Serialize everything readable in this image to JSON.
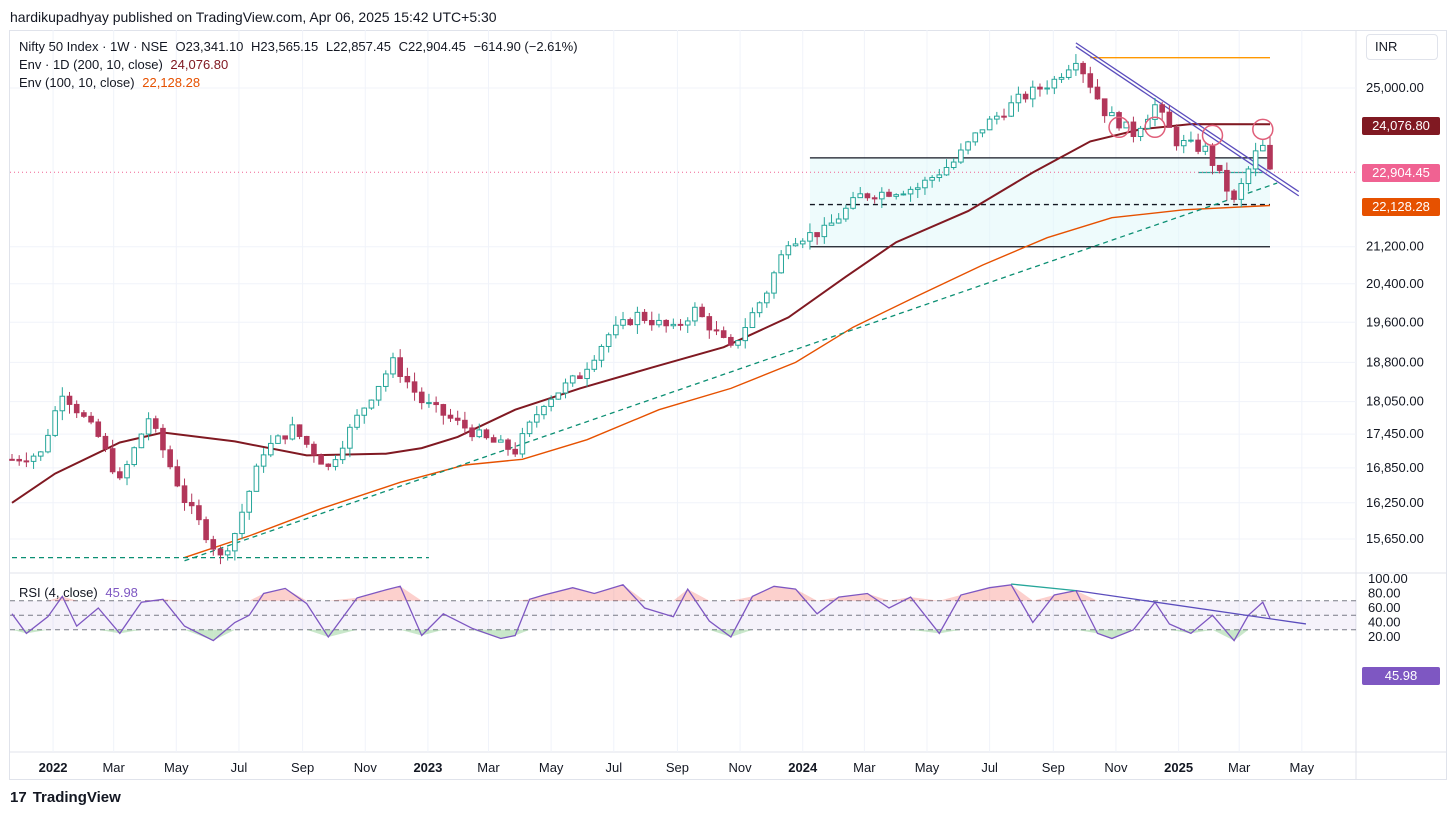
{
  "header": {
    "publisher_line": "hardikupadhyay published on TradingView.com, Apr 06, 2025 15:42 UTC+5:30"
  },
  "legend": {
    "symbol": "Nifty 50 Index · 1W · NSE",
    "open": "O23,341.10",
    "high": "H23,565.15",
    "low": "L22,857.45",
    "close": "C22,904.45",
    "change": "−614.90 (−2.61%)",
    "env200_label": "Env · 1D (200, 10, close)",
    "env200_value": "24,076.80",
    "env100_label": "Env (100, 10, close)",
    "env100_value": "22,128.28",
    "rsi_label": "RSI (4, close)",
    "rsi_value": "45.98"
  },
  "currency_button": "INR",
  "badges": {
    "env200": "24,076.80",
    "last_price": "22,904.45",
    "env100": "22,128.28",
    "rsi": "45.98"
  },
  "brand": {
    "name": "TradingView"
  },
  "colors": {
    "up": "#26a69a",
    "down": "#b2365a",
    "env200": "#801922",
    "env100": "#e65100",
    "trend": "#5b4dbd",
    "support_dashed": "#0b8f73",
    "rsi": "#7e57c2",
    "last_price": "#f06292"
  },
  "chart_data": {
    "type": "candlestick",
    "interval": "1W",
    "symbol": "Nifty 50 Index",
    "price_axis_labels": [
      "25,000.00",
      "21,200.00",
      "20,400.00",
      "19,600.00",
      "18,800.00",
      "18,050.00",
      "17,450.00",
      "16,850.00",
      "16,250.00",
      "15,650.00"
    ],
    "price_axis_scale": "log",
    "rsi_axis_labels": [
      "100.00",
      "80.00",
      "60.00",
      "40.00",
      "20.00"
    ],
    "time_axis_labels": [
      {
        "label": "2022",
        "date": "2022-01-01",
        "bold": true
      },
      {
        "label": "Mar",
        "date": "2022-03-01"
      },
      {
        "label": "May",
        "date": "2022-05-01"
      },
      {
        "label": "Jul",
        "date": "2022-07-01"
      },
      {
        "label": "Sep",
        "date": "2022-09-01"
      },
      {
        "label": "Nov",
        "date": "2022-11-01"
      },
      {
        "label": "2023",
        "date": "2023-01-01",
        "bold": true
      },
      {
        "label": "Mar",
        "date": "2023-03-01"
      },
      {
        "label": "May",
        "date": "2023-05-01"
      },
      {
        "label": "Jul",
        "date": "2023-07-01"
      },
      {
        "label": "Sep",
        "date": "2023-09-01"
      },
      {
        "label": "Nov",
        "date": "2023-11-01"
      },
      {
        "label": "2024",
        "date": "2024-01-01",
        "bold": true
      },
      {
        "label": "Mar",
        "date": "2024-03-01"
      },
      {
        "label": "May",
        "date": "2024-05-01"
      },
      {
        "label": "Jul",
        "date": "2024-07-01"
      },
      {
        "label": "Sep",
        "date": "2024-09-01"
      },
      {
        "label": "Nov",
        "date": "2024-11-01"
      },
      {
        "label": "2025",
        "date": "2025-01-01",
        "bold": true
      },
      {
        "label": "Mar",
        "date": "2025-03-01"
      },
      {
        "label": "May",
        "date": "2025-05-01"
      }
    ],
    "close_path": [
      [
        "2021-11-22",
        17000
      ],
      [
        "2021-12-20",
        17100
      ],
      [
        "2022-01-10",
        18250
      ],
      [
        "2022-02-14",
        17400
      ],
      [
        "2022-03-07",
        16600
      ],
      [
        "2022-04-04",
        17750
      ],
      [
        "2022-05-09",
        16300
      ],
      [
        "2022-06-13",
        15350
      ],
      [
        "2022-06-27",
        15750
      ],
      [
        "2022-07-25",
        17150
      ],
      [
        "2022-08-22",
        17550
      ],
      [
        "2022-09-26",
        16850
      ],
      [
        "2022-10-24",
        17750
      ],
      [
        "2022-11-28",
        18800
      ],
      [
        "2022-12-26",
        18050
      ],
      [
        "2023-01-30",
        17650
      ],
      [
        "2023-02-27",
        17350
      ],
      [
        "2023-03-27",
        17150
      ],
      [
        "2023-04-24",
        18050
      ],
      [
        "2023-05-29",
        18550
      ],
      [
        "2023-06-26",
        19350
      ],
      [
        "2023-07-24",
        19750
      ],
      [
        "2023-08-28",
        19450
      ],
      [
        "2023-09-18",
        19850
      ],
      [
        "2023-10-23",
        19050
      ],
      [
        "2023-11-27",
        20250
      ],
      [
        "2023-12-18",
        21350
      ],
      [
        "2024-01-22",
        21550
      ],
      [
        "2024-02-26",
        22350
      ],
      [
        "2024-03-25",
        22450
      ],
      [
        "2024-04-22",
        22550
      ],
      [
        "2024-05-27",
        23150
      ],
      [
        "2024-06-24",
        24000
      ],
      [
        "2024-07-29",
        24700
      ],
      [
        "2024-09-02",
        25200
      ],
      [
        "2024-09-23",
        25800
      ],
      [
        "2024-10-21",
        24400
      ],
      [
        "2024-11-18",
        23850
      ],
      [
        "2024-12-09",
        24550
      ],
      [
        "2024-12-30",
        23650
      ],
      [
        "2025-01-27",
        23450
      ],
      [
        "2025-02-24",
        22200
      ],
      [
        "2025-03-17",
        23350
      ],
      [
        "2025-03-24",
        23500
      ],
      [
        "2025-03-31",
        22904.45
      ]
    ],
    "env200_points": [
      [
        "2021-11-22",
        16250
      ],
      [
        "2022-01-03",
        16750
      ],
      [
        "2022-03-07",
        17300
      ],
      [
        "2022-04-18",
        17480
      ],
      [
        "2022-06-27",
        17320
      ],
      [
        "2022-09-05",
        17070
      ],
      [
        "2022-11-21",
        17100
      ],
      [
        "2022-12-26",
        17200
      ],
      [
        "2023-01-30",
        17400
      ],
      [
        "2023-03-27",
        17900
      ],
      [
        "2023-05-29",
        18300
      ],
      [
        "2023-08-07",
        18700
      ],
      [
        "2023-10-16",
        19100
      ],
      [
        "2023-12-18",
        19700
      ],
      [
        "2024-02-12",
        20550
      ],
      [
        "2024-04-01",
        21300
      ],
      [
        "2024-06-10",
        22000
      ],
      [
        "2024-08-12",
        22900
      ],
      [
        "2024-10-07",
        23650
      ],
      [
        "2024-11-25",
        23950
      ],
      [
        "2025-01-13",
        24080
      ],
      [
        "2025-03-31",
        24076.8
      ]
    ],
    "env100_points": [
      [
        "2022-05-09",
        15350
      ],
      [
        "2022-07-11",
        15700
      ],
      [
        "2022-09-19",
        16150
      ],
      [
        "2022-12-05",
        16600
      ],
      [
        "2023-02-06",
        16900
      ],
      [
        "2023-04-03",
        17000
      ],
      [
        "2023-06-05",
        17350
      ],
      [
        "2023-08-14",
        17900
      ],
      [
        "2023-10-23",
        18300
      ],
      [
        "2023-12-25",
        18800
      ],
      [
        "2024-02-19",
        19500
      ],
      [
        "2024-04-22",
        20150
      ],
      [
        "2024-06-24",
        20800
      ],
      [
        "2024-08-26",
        21400
      ],
      [
        "2024-10-28",
        21850
      ],
      [
        "2025-01-06",
        22030
      ],
      [
        "2025-03-31",
        22128.28
      ]
    ],
    "trend_lines": [
      {
        "name": "falling-resistance-1",
        "from": [
          "2024-09-23",
          26200
        ],
        "to": [
          "2025-04-28",
          22450
        ]
      },
      {
        "name": "falling-resistance-2",
        "from": [
          "2024-09-23",
          26100
        ],
        "to": [
          "2025-04-28",
          22350
        ]
      },
      {
        "name": "rising-support",
        "from": [
          "2022-05-09",
          15300
        ],
        "to": [
          "2025-04-07",
          22650
        ],
        "dashed": true
      },
      {
        "name": "base-support",
        "from": [
          "2021-11-22",
          15350
        ],
        "to": [
          "2023-01-02",
          15350
        ],
        "dashed": true
      }
    ],
    "horizontal_levels": [
      {
        "price": 25800,
        "from": "2024-10-07",
        "to": "2025-03-31",
        "color": "orange"
      },
      {
        "price": 23250,
        "from": "2024-01-08",
        "to": "2025-03-31"
      },
      {
        "price": 22150,
        "from": "2024-01-08",
        "to": "2025-03-31",
        "dashed": true
      },
      {
        "price": 21200,
        "from": "2024-01-08",
        "to": "2025-03-31"
      },
      {
        "price": 22900,
        "from": "2025-01-20",
        "to": "2025-03-24",
        "color": "teal"
      }
    ],
    "consolidation_zone": {
      "from": "2024-01-08",
      "to": "2025-03-31",
      "high": 23250,
      "low": 21200
    },
    "highlight_circles": [
      {
        "date": "2024-11-04",
        "price": 24000
      },
      {
        "date": "2024-12-09",
        "price": 24000
      },
      {
        "date": "2025-02-03",
        "price": 23800
      },
      {
        "date": "2025-03-24",
        "price": 23950
      }
    ],
    "rsi_path": [
      [
        "2021-11-22",
        52
      ],
      [
        "2021-12-06",
        25
      ],
      [
        "2021-12-27",
        48
      ],
      [
        "2022-01-10",
        76
      ],
      [
        "2022-01-24",
        35
      ],
      [
        "2022-02-14",
        60
      ],
      [
        "2022-03-07",
        25
      ],
      [
        "2022-03-28",
        68
      ],
      [
        "2022-04-18",
        72
      ],
      [
        "2022-05-09",
        35
      ],
      [
        "2022-06-06",
        15
      ],
      [
        "2022-06-27",
        40
      ],
      [
        "2022-07-11",
        50
      ],
      [
        "2022-07-25",
        80
      ],
      [
        "2022-08-15",
        87
      ],
      [
        "2022-09-05",
        66
      ],
      [
        "2022-09-26",
        20
      ],
      [
        "2022-10-24",
        74
      ],
      [
        "2022-11-21",
        85
      ],
      [
        "2022-12-05",
        90
      ],
      [
        "2022-12-26",
        22
      ],
      [
        "2023-01-16",
        52
      ],
      [
        "2023-02-13",
        32
      ],
      [
        "2023-03-13",
        18
      ],
      [
        "2023-03-27",
        22
      ],
      [
        "2023-04-10",
        72
      ],
      [
        "2023-04-24",
        78
      ],
      [
        "2023-05-22",
        88
      ],
      [
        "2023-06-12",
        80
      ],
      [
        "2023-07-10",
        92
      ],
      [
        "2023-07-31",
        60
      ],
      [
        "2023-08-28",
        48
      ],
      [
        "2023-09-11",
        86
      ],
      [
        "2023-10-02",
        42
      ],
      [
        "2023-10-23",
        20
      ],
      [
        "2023-11-13",
        76
      ],
      [
        "2023-12-04",
        90
      ],
      [
        "2023-12-25",
        86
      ],
      [
        "2024-01-15",
        52
      ],
      [
        "2024-02-05",
        75
      ],
      [
        "2024-03-04",
        80
      ],
      [
        "2024-03-25",
        60
      ],
      [
        "2024-04-15",
        75
      ],
      [
        "2024-05-13",
        25
      ],
      [
        "2024-06-03",
        78
      ],
      [
        "2024-07-01",
        88
      ],
      [
        "2024-07-22",
        92
      ],
      [
        "2024-08-12",
        40
      ],
      [
        "2024-09-02",
        78
      ],
      [
        "2024-09-23",
        84
      ],
      [
        "2024-10-14",
        25
      ],
      [
        "2024-10-28",
        18
      ],
      [
        "2024-11-18",
        30
      ],
      [
        "2024-12-09",
        68
      ],
      [
        "2024-12-23",
        38
      ],
      [
        "2025-01-13",
        25
      ],
      [
        "2025-02-03",
        50
      ],
      [
        "2025-02-24",
        15
      ],
      [
        "2025-03-10",
        50
      ],
      [
        "2025-03-24",
        68
      ],
      [
        "2025-03-31",
        45.98
      ]
    ],
    "rsi_bands": {
      "upper": 70,
      "middle": 50,
      "lower": 30
    },
    "rsi_trend_lines": [
      {
        "from": [
          "2024-07-22",
          93
        ],
        "to": [
          "2024-09-23",
          84
        ],
        "color": "teal"
      },
      {
        "from": [
          "2024-09-23",
          84
        ],
        "to": [
          "2025-05-05",
          38
        ],
        "color": "purple"
      }
    ],
    "last_price": 22904.45,
    "grid": true,
    "legend_position": "top-left"
  }
}
